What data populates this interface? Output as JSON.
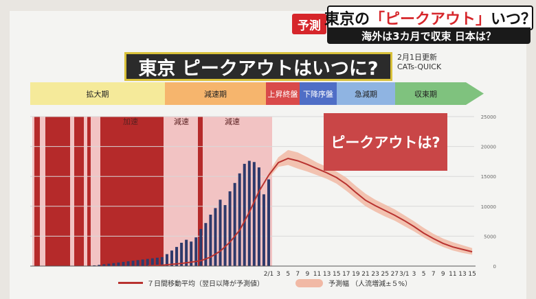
{
  "header": {
    "tag": "予測",
    "title_pre": "東京の",
    "title_highlight": "「ピークアウト」",
    "title_post": "いつ？",
    "subtitle": "海外は3カ月で収束 日本は？"
  },
  "main_title": "東京 ピークアウトはいつに?",
  "updated": "2月1日更新",
  "source": "CATs-QUICK",
  "phases": [
    {
      "label": "拡大期",
      "color": "#f5ea9a"
    },
    {
      "label": "減速期",
      "color": "#f6b56d"
    },
    {
      "label": "上昇終盤",
      "color": "#d94a4a"
    },
    {
      "label": "下降序盤",
      "color": "#4f6ec6"
    },
    {
      "label": "急減期",
      "color": "#8fb4e2"
    },
    {
      "label": "収束期",
      "color": "#7fc27e"
    }
  ],
  "peak_callout": "ピークアウトは?",
  "zones": [
    {
      "label": "加速"
    },
    {
      "label": "減速"
    },
    {
      "label": "減速"
    }
  ],
  "legend": {
    "line": "７日間移動平均（翌日以降が予測値）",
    "band": "予測幅 （人流増減±５%）"
  },
  "chart_data": {
    "type": "bar",
    "ylim": [
      0,
      25000
    ],
    "y_ticks": [
      "0",
      "5000",
      "10000",
      "15000",
      "20000",
      "25000"
    ],
    "x_ticks": [
      "2/1",
      "3",
      "5",
      "7",
      "9",
      "11",
      "13",
      "15",
      "17",
      "19",
      "21",
      "23",
      "25",
      "27",
      "3/1",
      "3",
      "5",
      "7",
      "9",
      "11",
      "13",
      "15"
    ],
    "daily_cases": {
      "values": [
        50,
        80,
        120,
        200,
        300,
        400,
        500,
        600,
        700,
        800,
        900,
        1000,
        1100,
        1200,
        1300,
        1400,
        1500,
        2000,
        2600,
        3200,
        3900,
        4400,
        4100,
        4800,
        6200,
        7200,
        8600,
        9700,
        11100,
        10200,
        12500,
        13900,
        15500,
        17100,
        17600,
        17400,
        16500,
        12000,
        14500
      ]
    },
    "moving_average_actual": {
      "x": [
        -25,
        -22,
        -20,
        -18,
        -16,
        -14,
        -12,
        -10,
        -8,
        -6,
        -4,
        -2,
        0
      ],
      "values": [
        50,
        150,
        300,
        450,
        650,
        900,
        1500,
        2500,
        4000,
        6000,
        9000,
        12500,
        15200
      ]
    },
    "moving_average_forecast": {
      "x": [
        0,
        2,
        4,
        6,
        8,
        10,
        12,
        14,
        16,
        18,
        20,
        22,
        24,
        26,
        28,
        30,
        32,
        34,
        36,
        38,
        40,
        42
      ],
      "values": [
        15200,
        17300,
        18000,
        17600,
        17000,
        16300,
        15600,
        14800,
        13700,
        12300,
        11000,
        10100,
        9300,
        8500,
        7600,
        6600,
        5500,
        4600,
        3800,
        3200,
        2800,
        2400
      ]
    },
    "forecast_band": {
      "x": [
        0,
        2,
        4,
        6,
        8,
        10,
        12,
        14,
        16,
        18,
        20,
        22,
        24,
        26,
        28,
        30,
        32,
        34,
        36,
        38,
        40,
        42
      ],
      "upper": [
        15700,
        18200,
        19400,
        19000,
        18200,
        17300,
        16600,
        15800,
        14800,
        13400,
        12100,
        11100,
        10300,
        9500,
        8500,
        7500,
        6400,
        5400,
        4600,
        4000,
        3500,
        3000
      ],
      "lower": [
        14700,
        16600,
        16900,
        16300,
        15800,
        15200,
        14600,
        13800,
        12600,
        11300,
        10000,
        9100,
        8300,
        7600,
        6700,
        5800,
        4800,
        3900,
        3200,
        2600,
        2200,
        1900
      ]
    }
  },
  "colors": {
    "bar": "#2e3a6b",
    "zone_shade": "#f2c3c3",
    "zone_dark": "#b52a2a",
    "line": "#b8322f",
    "band": "#f1b9a5"
  }
}
